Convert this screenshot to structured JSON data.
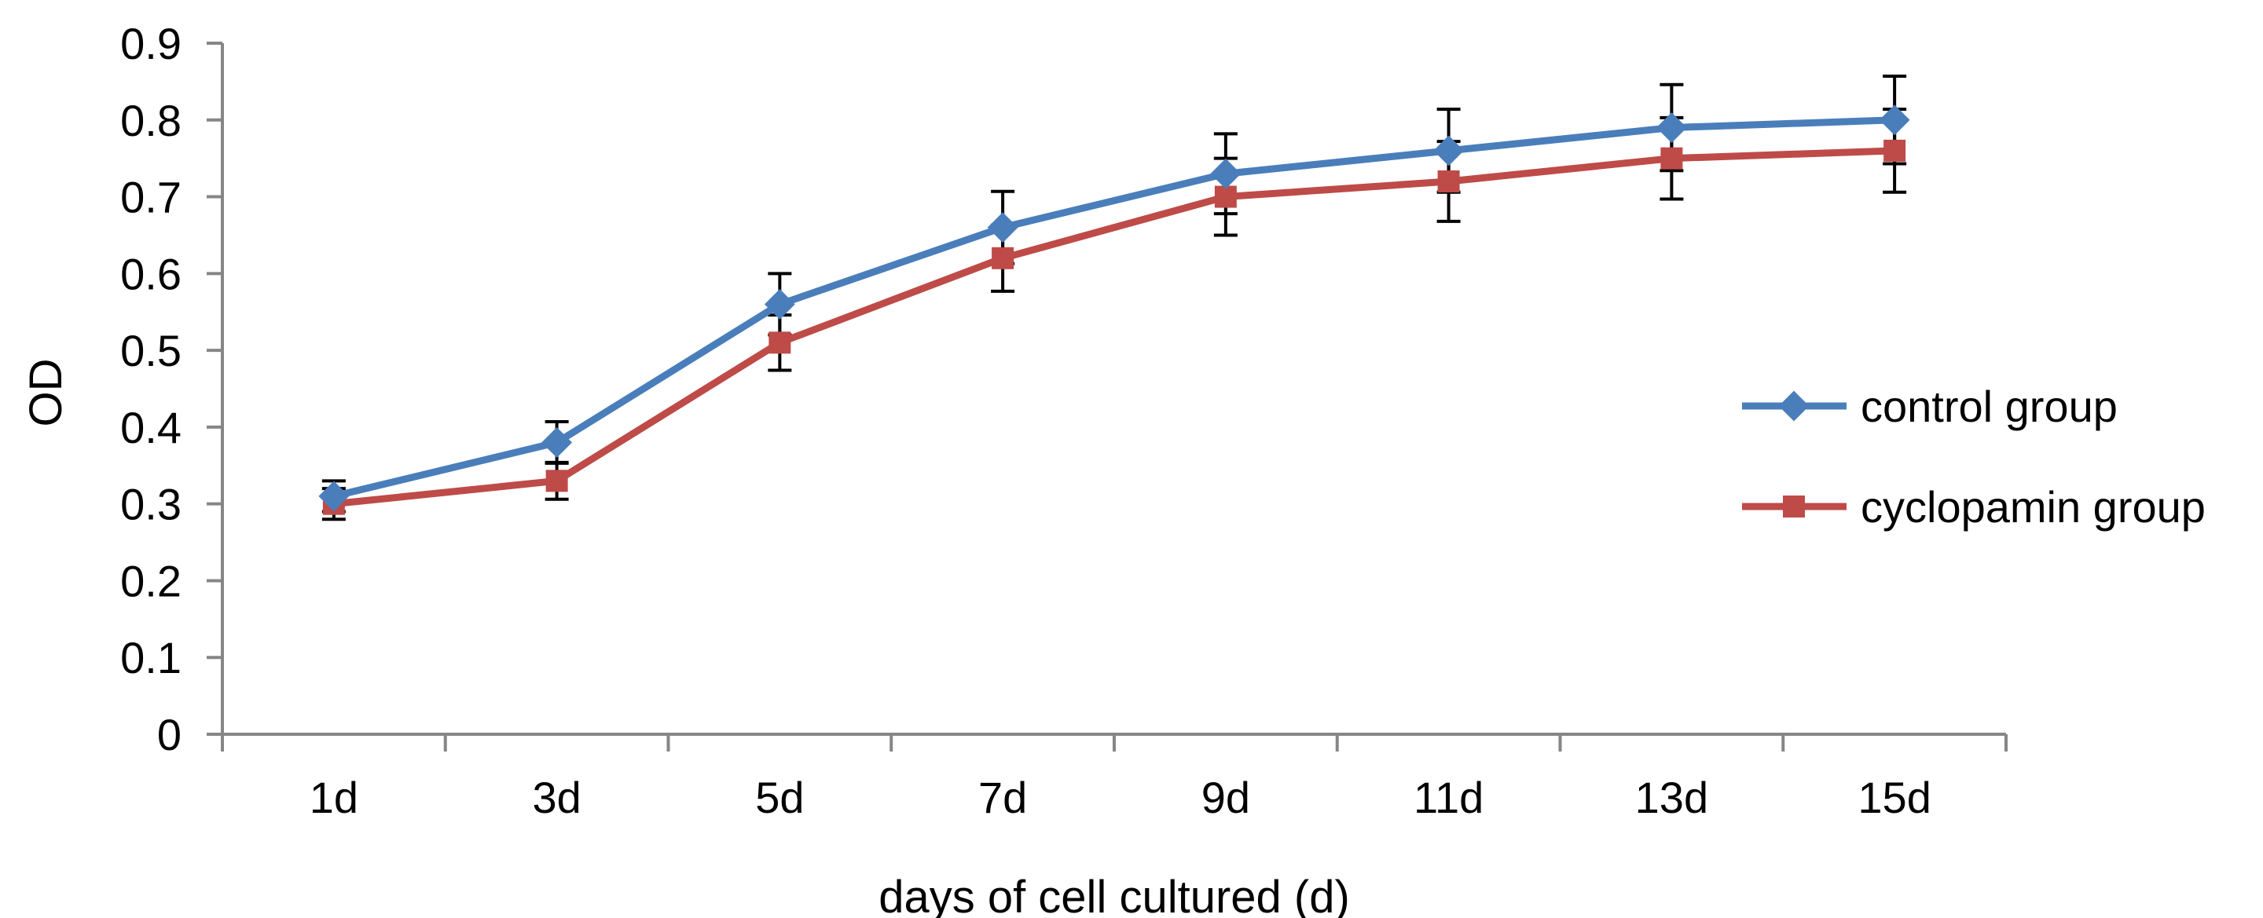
{
  "chart_data": {
    "type": "line",
    "title": "",
    "xlabel": "days of cell cultured (d)",
    "ylabel": "OD",
    "categories": [
      "1d",
      "3d",
      "5d",
      "7d",
      "9d",
      "11d",
      "13d",
      "15d"
    ],
    "ylim": [
      0,
      0.9
    ],
    "yticks": [
      "0",
      "0.1",
      "0.2",
      "0.3",
      "0.4",
      "0.5",
      "0.6",
      "0.7",
      "0.8",
      "0.9"
    ],
    "grid": false,
    "legend_position": "right",
    "series": [
      {
        "name": "control group",
        "color": "#4A7EBB",
        "marker": "diamond",
        "values": [
          0.31,
          0.38,
          0.56,
          0.66,
          0.73,
          0.76,
          0.79,
          0.8
        ],
        "errors": [
          0.02,
          0.027,
          0.04,
          0.047,
          0.052,
          0.054,
          0.056,
          0.057
        ]
      },
      {
        "name": "cyclopamin group",
        "color": "#BE4B48",
        "marker": "square",
        "values": [
          0.3,
          0.33,
          0.51,
          0.62,
          0.7,
          0.72,
          0.75,
          0.76
        ],
        "errors": [
          0.02,
          0.024,
          0.036,
          0.043,
          0.05,
          0.052,
          0.053,
          0.054
        ]
      }
    ]
  }
}
